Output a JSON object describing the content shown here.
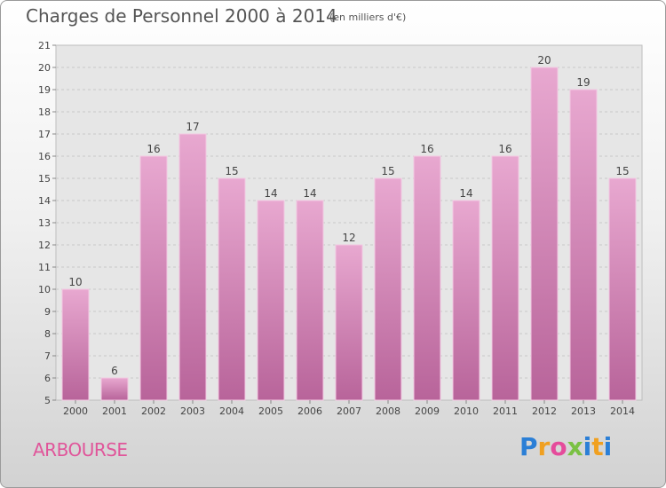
{
  "title": "Charges de Personnel 2000 à 2014",
  "subtitle": "(en milliers d'€)",
  "commune": "ARBOURSE",
  "logo": {
    "letters": [
      "P",
      "r",
      "o",
      "x",
      "i",
      "t",
      "i"
    ],
    "colors": [
      "#2b7fd6",
      "#f0a020",
      "#e54b9b",
      "#7ac143",
      "#2b7fd6",
      "#f0a020",
      "#2b7fd6"
    ]
  },
  "chart_data": {
    "type": "bar",
    "title": "Charges de Personnel 2000 à 2014",
    "subtitle": "(en milliers d'€)",
    "categories": [
      "2000",
      "2001",
      "2002",
      "2003",
      "2004",
      "2005",
      "2006",
      "2007",
      "2008",
      "2009",
      "2010",
      "2011",
      "2012",
      "2013",
      "2014"
    ],
    "values": [
      10,
      6,
      16,
      17,
      15,
      14,
      14,
      12,
      15,
      16,
      14,
      16,
      20,
      19,
      15
    ],
    "ylim": [
      5,
      21
    ],
    "yticks": [
      5,
      6,
      7,
      8,
      9,
      10,
      11,
      12,
      13,
      14,
      15,
      16,
      17,
      18,
      19,
      20,
      21
    ],
    "grid": true,
    "bar_color": "#d07ab0"
  }
}
